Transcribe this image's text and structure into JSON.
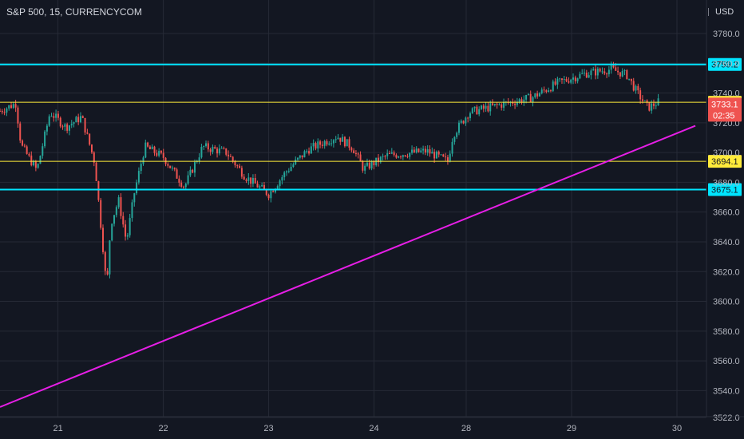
{
  "header": {
    "title": "S&P 500, 15, CURRENCYCOM",
    "currency": "USD"
  },
  "colors": {
    "background": "#131722",
    "grid": "#262a36",
    "up": "#26a69a",
    "down": "#ef5350",
    "cyan_level": "#00e5ff",
    "yellow_level": "#ffeb3b",
    "trendline": "#e61ee6",
    "axis_text": "#b2b5be"
  },
  "chart_data": {
    "type": "candlestick",
    "title": "S&P 500, 15, CURRENCYCOM",
    "currency": "USD",
    "ylim": [
      3515,
      3795
    ],
    "y_ticks": [
      3780,
      3760,
      3740,
      3720,
      3700,
      3680,
      3660,
      3640,
      3620,
      3600,
      3580,
      3560,
      3540,
      3522
    ],
    "x_ticks": [
      {
        "label": "21",
        "t": 3.0
      },
      {
        "label": "22",
        "t": 7.0
      },
      {
        "label": "23",
        "t": 11.0
      },
      {
        "label": "24",
        "t": 15.0
      },
      {
        "label": "28",
        "t": 18.5
      },
      {
        "label": "29",
        "t": 22.5
      },
      {
        "label": "30",
        "t": 26.5
      }
    ],
    "t_range": [
      0.8,
      26.5
    ],
    "horizontal_levels": [
      {
        "value": 3759.2,
        "label": "3759.2",
        "color": "cyan",
        "width": 2
      },
      {
        "value": 3733.8,
        "label": "3733.8",
        "color": "yellow",
        "width": 1
      },
      {
        "value": 3694.1,
        "label": "3694.1",
        "color": "yellow",
        "width": 1
      },
      {
        "value": 3675.1,
        "label": "3675.1",
        "color": "cyan",
        "width": 2
      }
    ],
    "current_price": {
      "value": "3733.1",
      "countdown": "02:35"
    },
    "trendline": {
      "start": {
        "t": 0.8,
        "price": 3529.0
      },
      "end": {
        "t": 27.2,
        "price": 3718.0
      }
    },
    "price_path": [
      {
        "t": 0.8,
        "price": 3728
      },
      {
        "t": 1.4,
        "price": 3733
      },
      {
        "t": 1.6,
        "price": 3705
      },
      {
        "t": 2.2,
        "price": 3688
      },
      {
        "t": 2.7,
        "price": 3727
      },
      {
        "t": 3.3,
        "price": 3717
      },
      {
        "t": 3.9,
        "price": 3724
      },
      {
        "t": 4.4,
        "price": 3693
      },
      {
        "t": 4.7,
        "price": 3638
      },
      {
        "t": 4.85,
        "price": 3608
      },
      {
        "t": 5.0,
        "price": 3652
      },
      {
        "t": 5.3,
        "price": 3668
      },
      {
        "t": 5.6,
        "price": 3640
      },
      {
        "t": 5.9,
        "price": 3673
      },
      {
        "t": 6.3,
        "price": 3704
      },
      {
        "t": 7.0,
        "price": 3697
      },
      {
        "t": 7.8,
        "price": 3677
      },
      {
        "t": 8.5,
        "price": 3704
      },
      {
        "t": 9.4,
        "price": 3700
      },
      {
        "t": 10.1,
        "price": 3684
      },
      {
        "t": 11.0,
        "price": 3672
      },
      {
        "t": 11.7,
        "price": 3688
      },
      {
        "t": 12.5,
        "price": 3702
      },
      {
        "t": 13.6,
        "price": 3711
      },
      {
        "t": 14.2,
        "price": 3703
      },
      {
        "t": 14.6,
        "price": 3689
      },
      {
        "t": 15.5,
        "price": 3698
      },
      {
        "t": 17.0,
        "price": 3701
      },
      {
        "t": 17.8,
        "price": 3694
      },
      {
        "t": 18.0,
        "price": 3712
      },
      {
        "t": 18.6,
        "price": 3727
      },
      {
        "t": 20.0,
        "price": 3733
      },
      {
        "t": 21.0,
        "price": 3737
      },
      {
        "t": 22.0,
        "price": 3747
      },
      {
        "t": 23.0,
        "price": 3753
      },
      {
        "t": 24.0,
        "price": 3756
      },
      {
        "t": 24.6,
        "price": 3752
      },
      {
        "t": 25.0,
        "price": 3740
      },
      {
        "t": 25.4,
        "price": 3730
      },
      {
        "t": 25.8,
        "price": 3734
      }
    ]
  }
}
